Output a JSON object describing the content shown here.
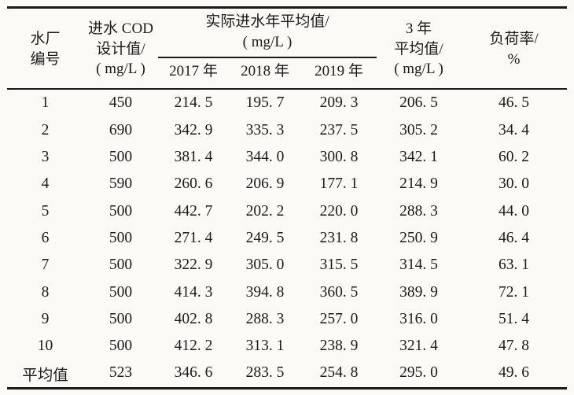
{
  "colors": {
    "rule": "#191919",
    "text": "#1b1b1b",
    "background": "#fbfaf7"
  },
  "table": {
    "header": {
      "plant_id": "水厂\n编号",
      "design_cod": "进水 COD\n设计值/\n( mg/L )",
      "actual_avg": "实际进水年平均值/\n( mg/L )",
      "years": [
        "2017 年",
        "2018 年",
        "2019 年"
      ],
      "three_year_avg": "3 年\n平均值/\n( mg/L )",
      "load_rate": "负荷率/\n%"
    },
    "rows": [
      {
        "cells": [
          "1",
          "450",
          "214. 5",
          "195. 7",
          "209. 3",
          "206. 5",
          "46. 5"
        ]
      },
      {
        "cells": [
          "2",
          "690",
          "342. 9",
          "335. 3",
          "237. 5",
          "305. 2",
          "34. 4"
        ]
      },
      {
        "cells": [
          "3",
          "500",
          "381. 4",
          "344. 0",
          "300. 8",
          "342. 1",
          "60. 2"
        ]
      },
      {
        "cells": [
          "4",
          "590",
          "260. 6",
          "206. 9",
          "177. 1",
          "214. 9",
          "30. 0"
        ]
      },
      {
        "cells": [
          "5",
          "500",
          "442. 7",
          "202. 2",
          "220. 0",
          "288. 3",
          "44. 0"
        ]
      },
      {
        "cells": [
          "6",
          "500",
          "271. 4",
          "249. 5",
          "231. 8",
          "250. 9",
          "46. 4"
        ]
      },
      {
        "cells": [
          "7",
          "500",
          "322. 9",
          "305. 0",
          "315. 5",
          "314. 5",
          "63. 1"
        ]
      },
      {
        "cells": [
          "8",
          "500",
          "414. 3",
          "394. 8",
          "360. 5",
          "389. 9",
          "72. 1"
        ]
      },
      {
        "cells": [
          "9",
          "500",
          "402. 8",
          "288. 3",
          "257. 0",
          "316. 0",
          "51. 4"
        ]
      },
      {
        "cells": [
          "10",
          "500",
          "412. 2",
          "313. 1",
          "238. 9",
          "321. 4",
          "47. 8"
        ]
      },
      {
        "cells": [
          "平均值",
          "523",
          "346. 6",
          "283. 5",
          "254. 8",
          "295. 0",
          "49. 6"
        ]
      }
    ]
  }
}
